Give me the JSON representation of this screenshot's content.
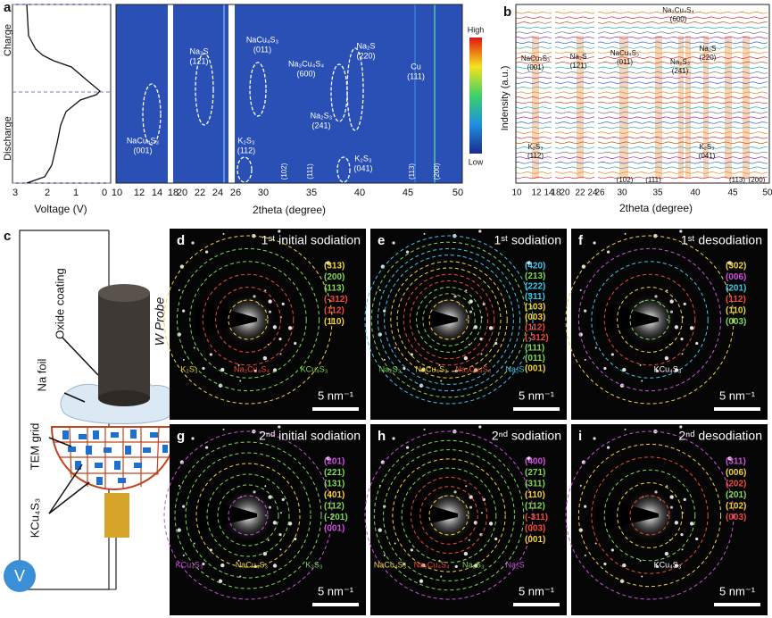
{
  "panel_a": {
    "label": "a",
    "voltage_axis": {
      "label": "Voltage (V)",
      "ticks": [
        "3",
        "2",
        "1",
        "0"
      ]
    },
    "states": [
      "Charge",
      "Discharge"
    ],
    "x_axis": {
      "label": "2theta (degree)",
      "ticks": [
        "10",
        "12",
        "14",
        "18",
        "20",
        "22",
        "24",
        "26",
        "30",
        "35",
        "40",
        "45",
        "50"
      ]
    },
    "colorbar": [
      "High",
      "Low"
    ],
    "annotations": [
      {
        "name": "NaCu₄S₃",
        "hkl": "(001)"
      },
      {
        "name": "Na₂S",
        "hkl": "(121)"
      },
      {
        "name": "NaCu₄S₃",
        "hkl": "(011)"
      },
      {
        "name": "Na₃Cu₄S₄",
        "hkl": "(600)"
      },
      {
        "name": "Na₂S",
        "hkl": "(220)"
      },
      {
        "name": "Cu",
        "hkl": "(111)"
      },
      {
        "name": "Na₂S₃",
        "hkl": "(241)"
      },
      {
        "name": "K₂S₃",
        "hkl": "(112)"
      },
      {
        "name": "K₂S₃",
        "hkl": "(041)"
      }
    ],
    "bottom_labels": [
      "(102)",
      "(111)",
      "(113)",
      "(200)"
    ]
  },
  "panel_b": {
    "label": "b",
    "y_label": "Indensity (a.u.)",
    "x_axis": {
      "label": "2theta (degree)",
      "ticks": [
        "10",
        "12",
        "14",
        "18",
        "20",
        "22",
        "24",
        "26",
        "30",
        "35",
        "40",
        "45",
        "50"
      ]
    },
    "annotations": [
      {
        "name": "NaCu₄S₃",
        "hkl": "(001)"
      },
      {
        "name": "Na₂S",
        "hkl": "(121)"
      },
      {
        "name": "NaCu₄S₃",
        "hkl": "(011)"
      },
      {
        "name": "Na₃Cu₄S₄",
        "hkl": "(600)"
      },
      {
        "name": "Na₂S",
        "hkl": "(220)"
      },
      {
        "name": "Na₂S₃",
        "hkl": "(241)"
      },
      {
        "name": "K₂S₃",
        "hkl": "(112)"
      },
      {
        "name": "K₂S₃",
        "hkl": "(041)"
      }
    ],
    "bottom_labels": [
      "(102)",
      "(111)",
      "(113)",
      "(200)"
    ]
  },
  "panel_c": {
    "label": "c",
    "labels": [
      "Oxide coating",
      "Na foil",
      "W Probe",
      "TEM grid",
      "KCu₄S₃"
    ],
    "meter": "V"
  },
  "saed": [
    {
      "label": "d",
      "title": "1ˢᵗ initial sodiation",
      "scale": "5 nm⁻¹",
      "rings": [
        {
          "text": "(313)",
          "color": "#f2d43a"
        },
        {
          "text": "(200)",
          "color": "#7ed957"
        },
        {
          "text": "(113)",
          "color": "#7ed957"
        },
        {
          "text": "(-312)",
          "color": "#f04a3a"
        },
        {
          "text": "(112)",
          "color": "#f04a3a"
        },
        {
          "text": "(110)",
          "color": "#f2d43a"
        }
      ],
      "phases": [
        {
          "text": "K₂S₃",
          "color": "#f2d43a"
        },
        {
          "text": "Na₃Cu₄S₄",
          "color": "#f04a3a"
        },
        {
          "text": "KCu₄S₃",
          "color": "#7ed957"
        }
      ]
    },
    {
      "label": "e",
      "title": "1ˢᵗ sodiation",
      "scale": "5 nm⁻¹",
      "rings": [
        {
          "text": "(420)",
          "color": "#3ec8e8"
        },
        {
          "text": "(213)",
          "color": "#7ed957"
        },
        {
          "text": "(222)",
          "color": "#3ec8e8"
        },
        {
          "text": "(311)",
          "color": "#3ec8e8"
        },
        {
          "text": "(103)",
          "color": "#f2d43a"
        },
        {
          "text": "(003)",
          "color": "#f2d43a"
        },
        {
          "text": "(112)",
          "color": "#f04a3a"
        },
        {
          "text": "(-312)",
          "color": "#f04a3a"
        },
        {
          "text": "(111)",
          "color": "#7ed957"
        },
        {
          "text": "(011)",
          "color": "#7ed957"
        },
        {
          "text": "(001)",
          "color": "#f2d43a"
        }
      ],
      "phases": [
        {
          "text": "Na₂S₃",
          "color": "#7ed957"
        },
        {
          "text": "NaCu₄S₃",
          "color": "#f2d43a"
        },
        {
          "text": "Na₃Cu₄S₄",
          "color": "#f04a3a"
        },
        {
          "text": "Na₂S",
          "color": "#3ec8e8"
        }
      ]
    },
    {
      "label": "f",
      "title": "1ˢᵗ desodiation",
      "scale": "5 nm⁻¹",
      "rings": [
        {
          "text": "(302)",
          "color": "#f2d43a"
        },
        {
          "text": "(006)",
          "color": "#d050e0"
        },
        {
          "text": "(201)",
          "color": "#3ec8e8"
        },
        {
          "text": "(112)",
          "color": "#f04a3a"
        },
        {
          "text": "(110)",
          "color": "#f2d43a"
        },
        {
          "text": "(003)",
          "color": "#7ed957"
        }
      ],
      "phases": [
        {
          "text": "KCu₄S₃",
          "color": "#ffffff"
        }
      ]
    },
    {
      "label": "g",
      "title": "2ⁿᵈ initial sodiation",
      "scale": "5 nm⁻¹",
      "rings": [
        {
          "text": "(201)",
          "color": "#d050e0"
        },
        {
          "text": "(221)",
          "color": "#7ed957"
        },
        {
          "text": "(131)",
          "color": "#7ed957"
        },
        {
          "text": "(401)",
          "color": "#f2d43a"
        },
        {
          "text": "(112)",
          "color": "#7ed957"
        },
        {
          "text": "(-201)",
          "color": "#7ed957"
        },
        {
          "text": "(001)",
          "color": "#d050e0"
        }
      ],
      "phases": [
        {
          "text": "KCu₄S₃",
          "color": "#d050e0"
        },
        {
          "text": "NaCu₄S₃",
          "color": "#f2d43a"
        },
        {
          "text": "K₂S₃",
          "color": "#7ed957"
        }
      ]
    },
    {
      "label": "h",
      "title": "2ⁿᵈ sodiation",
      "scale": "5 nm⁻¹",
      "rings": [
        {
          "text": "(400)",
          "color": "#d050e0"
        },
        {
          "text": "(271)",
          "color": "#7ed957"
        },
        {
          "text": "(311)",
          "color": "#7ed957"
        },
        {
          "text": "(110)",
          "color": "#f2d43a"
        },
        {
          "text": "(112)",
          "color": "#7ed957"
        },
        {
          "text": "(-311)",
          "color": "#f04a3a"
        },
        {
          "text": "(003)",
          "color": "#f04a3a"
        },
        {
          "text": "(001)",
          "color": "#f2d43a"
        }
      ],
      "phases": [
        {
          "text": "NaCu₄S₃",
          "color": "#f2d43a"
        },
        {
          "text": "Na₃Cu₄S₄",
          "color": "#f04a3a"
        },
        {
          "text": "Na₂S₃",
          "color": "#7ed957"
        },
        {
          "text": "Na₂S",
          "color": "#d050e0"
        }
      ]
    },
    {
      "label": "i",
      "title": "2ⁿᵈ desodiation",
      "scale": "5 nm⁻¹",
      "rings": [
        {
          "text": "(311)",
          "color": "#d050e0"
        },
        {
          "text": "(006)",
          "color": "#f2d43a"
        },
        {
          "text": "(202)",
          "color": "#f04a3a"
        },
        {
          "text": "(201)",
          "color": "#7ed957"
        },
        {
          "text": "(102)",
          "color": "#f2d43a"
        },
        {
          "text": "(003)",
          "color": "#f04a3a"
        }
      ],
      "phases": [
        {
          "text": "KCu₄S₃",
          "color": "#ffffff"
        }
      ]
    }
  ]
}
